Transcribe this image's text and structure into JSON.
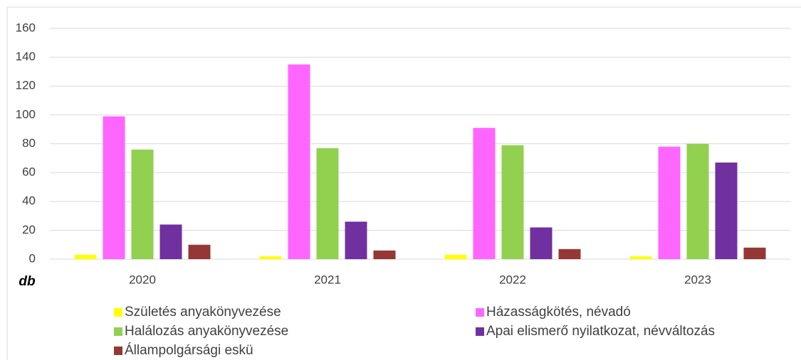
{
  "chart_data": {
    "type": "bar",
    "y_label": "db",
    "categories": [
      "2020",
      "2021",
      "2022",
      "2023"
    ],
    "series": [
      {
        "name": "Születés anyakönyvezése",
        "color": "#ffff00",
        "values": [
          3,
          2,
          3,
          2
        ]
      },
      {
        "name": "Házasságkötés, névadó",
        "color": "#ff66ff",
        "values": [
          99,
          135,
          91,
          78
        ]
      },
      {
        "name": "Halálozás anyakönyvezése",
        "color": "#92d050",
        "values": [
          76,
          77,
          79,
          80
        ]
      },
      {
        "name": "Apai elismerő nyilatkozat, névváltozás",
        "color": "#7030a0",
        "values": [
          24,
          26,
          22,
          67
        ]
      },
      {
        "name": "Állampolgársági eskü",
        "color": "#953735",
        "values": [
          10,
          6,
          7,
          8
        ]
      }
    ],
    "ylim": [
      0,
      160
    ],
    "yticks": [
      0,
      20,
      40,
      60,
      80,
      100,
      120,
      140,
      160
    ],
    "grid": true,
    "legend": "bottom"
  }
}
